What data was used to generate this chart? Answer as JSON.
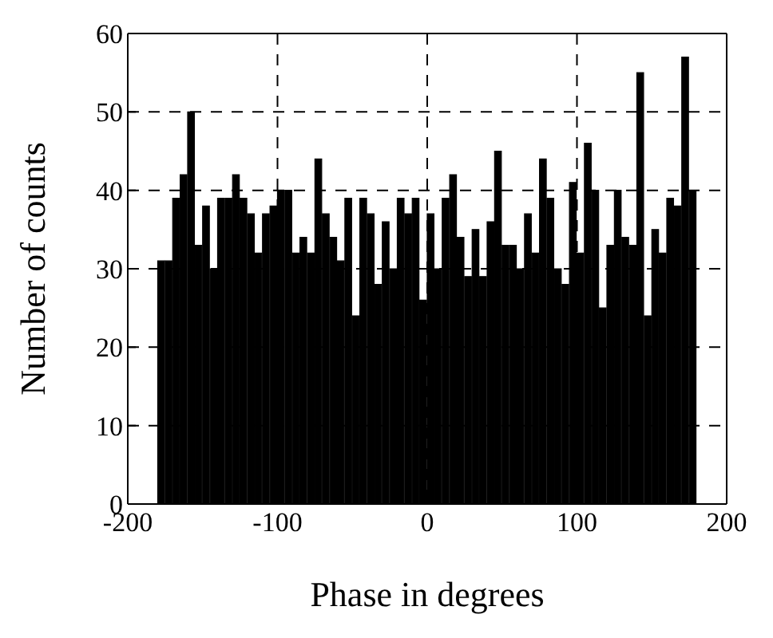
{
  "chart_data": {
    "type": "histogram",
    "xlabel": "Phase in degrees",
    "ylabel": "Number of counts",
    "bins": [
      -180,
      -175,
      -170,
      -165,
      -160,
      -155,
      -150,
      -145,
      -140,
      -135,
      -130,
      -125,
      -120,
      -115,
      -110,
      -105,
      -100,
      -95,
      -90,
      -85,
      -80,
      -75,
      -70,
      -65,
      -60,
      -55,
      -50,
      -45,
      -40,
      -35,
      -30,
      -25,
      -20,
      -15,
      -10,
      -5,
      0,
      5,
      10,
      15,
      20,
      25,
      30,
      35,
      40,
      45,
      50,
      55,
      60,
      65,
      70,
      75,
      80,
      85,
      90,
      95,
      100,
      105,
      110,
      115,
      120,
      125,
      130,
      135,
      140,
      145,
      150,
      155,
      160,
      165,
      170,
      175,
      180
    ],
    "values": [
      31,
      31,
      39,
      42,
      50,
      33,
      38,
      30,
      39,
      39,
      42,
      39,
      37,
      32,
      37,
      38,
      40,
      40,
      32,
      34,
      32,
      44,
      37,
      34,
      31,
      39,
      24,
      39,
      37,
      28,
      36,
      30,
      39,
      37,
      39,
      26,
      37,
      30,
      39,
      42,
      34,
      29,
      35,
      29,
      36,
      45,
      33,
      33,
      30,
      37,
      32,
      44,
      39,
      30,
      28,
      41,
      32,
      46,
      40,
      25,
      33,
      40,
      34,
      33,
      55,
      24,
      35,
      32,
      39,
      38,
      57,
      40
    ],
    "color": "#000000",
    "xlim": [
      -200,
      200
    ],
    "xticks": [
      -200,
      -100,
      0,
      100,
      200
    ],
    "ylim": [
      0,
      60
    ],
    "yticks": [
      0,
      10,
      20,
      30,
      40,
      50,
      60
    ],
    "grid": true
  }
}
